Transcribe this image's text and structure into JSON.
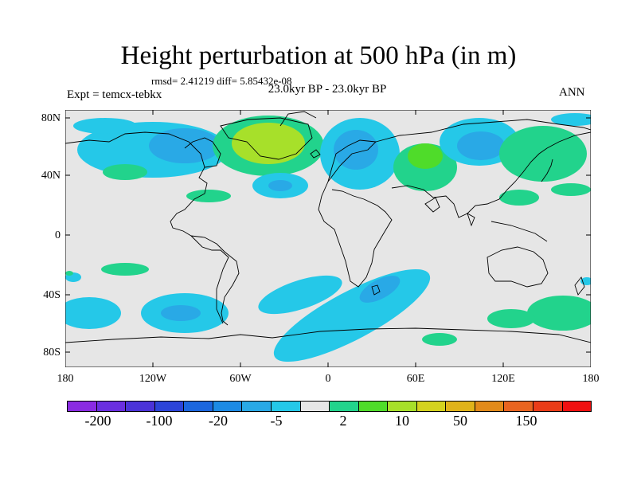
{
  "title": "Height perturbation at 500 hPa (in m)",
  "stats": "rmsd= 2.41219 diff= 5.85432e-08",
  "period": "23.0kyr BP - 23.0kyr BP",
  "experiment": "Expt = temcx-tebkx",
  "season": "ANN",
  "map": {
    "projection": "cylindrical equidistant",
    "lon_range": [
      -180,
      180
    ],
    "lat_range": [
      -90,
      90
    ],
    "background_color": "#e6e6e6",
    "lat_labels": [
      "80N",
      "40N",
      "0",
      "40S",
      "80S"
    ],
    "lon_labels": [
      "180",
      "120W",
      "60W",
      "0",
      "60E",
      "120E",
      "180"
    ]
  },
  "colorbar": {
    "colors": [
      "#8a2be2",
      "#6a2fe0",
      "#4b33d8",
      "#2c44d8",
      "#1b66de",
      "#1c8ae4",
      "#29a9e6",
      "#25c8e8",
      "#e6e6e6",
      "#22d38c",
      "#4fdc2a",
      "#a7e02a",
      "#d4d21e",
      "#e0b31a",
      "#e28a1a",
      "#e86420",
      "#ea3c18",
      "#f01010"
    ],
    "labels": [
      "-200",
      "-100",
      "-20",
      "-5",
      "2",
      "10",
      "50",
      "150"
    ]
  }
}
